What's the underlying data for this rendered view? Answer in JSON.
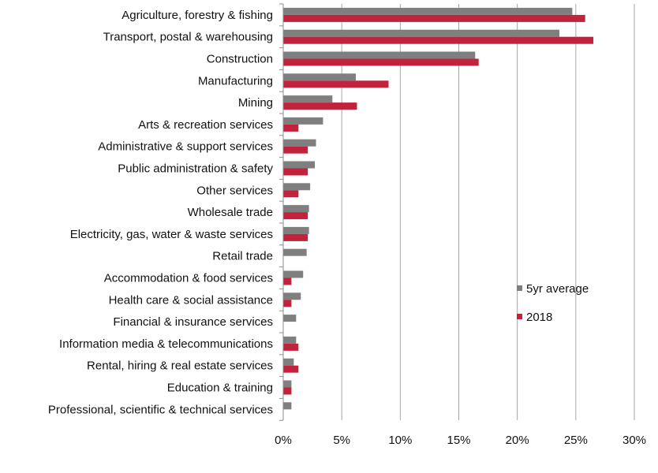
{
  "chart_data": {
    "type": "bar",
    "orientation": "horizontal",
    "title": "",
    "xlabel": "",
    "ylabel": "",
    "xlim": [
      0,
      30
    ],
    "x_ticks": [
      0,
      5,
      10,
      15,
      20,
      25,
      30
    ],
    "x_tick_format": "percent",
    "grid": "vertical",
    "legend_position": "right-middle",
    "categories": [
      "Agriculture, forestry & fishing",
      "Transport, postal & warehousing",
      "Construction",
      "Manufacturing",
      "Mining",
      "Arts & recreation services",
      "Administrative & support services",
      "Public administration & safety",
      "Other services",
      "Wholesale trade",
      "Electricity, gas, water & waste services",
      "Retail trade",
      "Accommodation & food services",
      "Health care & social assistance",
      "Financial & insurance services",
      "Information media & telecommunications",
      "Rental, hiring & real estate services",
      "Education & training",
      "Professional, scientific & technical services"
    ],
    "series": [
      {
        "name": "5yr average",
        "color": "#7f7f7f",
        "values": [
          24.7,
          23.6,
          16.4,
          6.2,
          4.2,
          3.4,
          2.8,
          2.7,
          2.3,
          2.2,
          2.2,
          2.0,
          1.7,
          1.5,
          1.1,
          1.1,
          0.9,
          0.7,
          0.7
        ]
      },
      {
        "name": "2018",
        "color": "#c0233b",
        "values": [
          25.8,
          26.5,
          16.7,
          9.0,
          6.3,
          1.3,
          2.1,
          2.1,
          1.3,
          2.1,
          2.1,
          0.0,
          0.7,
          0.7,
          0.0,
          1.3,
          1.3,
          0.7,
          0.0
        ]
      }
    ]
  }
}
